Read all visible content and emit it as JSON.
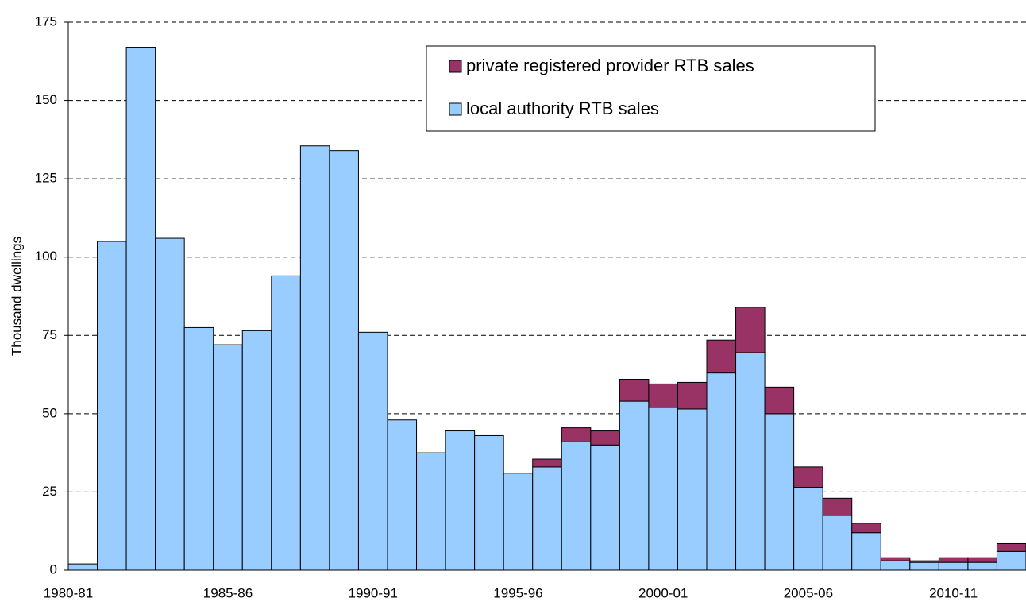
{
  "chart_data": {
    "type": "stacked_bar",
    "y_label": "Thousand dwellings",
    "categories": [
      "1980-81",
      null,
      null,
      null,
      null,
      "1985-86",
      null,
      null,
      null,
      null,
      "1990-91",
      null,
      null,
      null,
      null,
      "1995-96",
      null,
      null,
      null,
      null,
      "2000-01",
      null,
      null,
      null,
      null,
      "2005-06",
      null,
      null,
      null,
      null,
      "2010-11",
      null,
      null
    ],
    "series": [
      {
        "name": "local authority RTB sales",
        "color": "#99ccff",
        "values": [
          2,
          105,
          167,
          106,
          77.5,
          72,
          76.5,
          94,
          135.5,
          134,
          76,
          48,
          37.5,
          44.5,
          43,
          31,
          33,
          41,
          40,
          54,
          52,
          51.5,
          63,
          69.5,
          50,
          26.5,
          17.5,
          12,
          3,
          2.5,
          2.5,
          2.5,
          6
        ]
      },
      {
        "name": "private registered provider RTB sales",
        "color": "#993366",
        "values": [
          0,
          0,
          0,
          0,
          0,
          0,
          0,
          0,
          0,
          0,
          0,
          0,
          0,
          0,
          0,
          0,
          2.5,
          4.5,
          4.5,
          7,
          7.5,
          8.5,
          10.5,
          14.5,
          8.5,
          6.5,
          5.5,
          3,
          1,
          0.5,
          1.5,
          1.5,
          2.5
        ]
      }
    ],
    "ylim": [
      0,
      175
    ],
    "yticks": [
      0,
      25,
      50,
      75,
      100,
      125,
      150,
      175
    ],
    "grid": true,
    "legend": "top-right"
  }
}
